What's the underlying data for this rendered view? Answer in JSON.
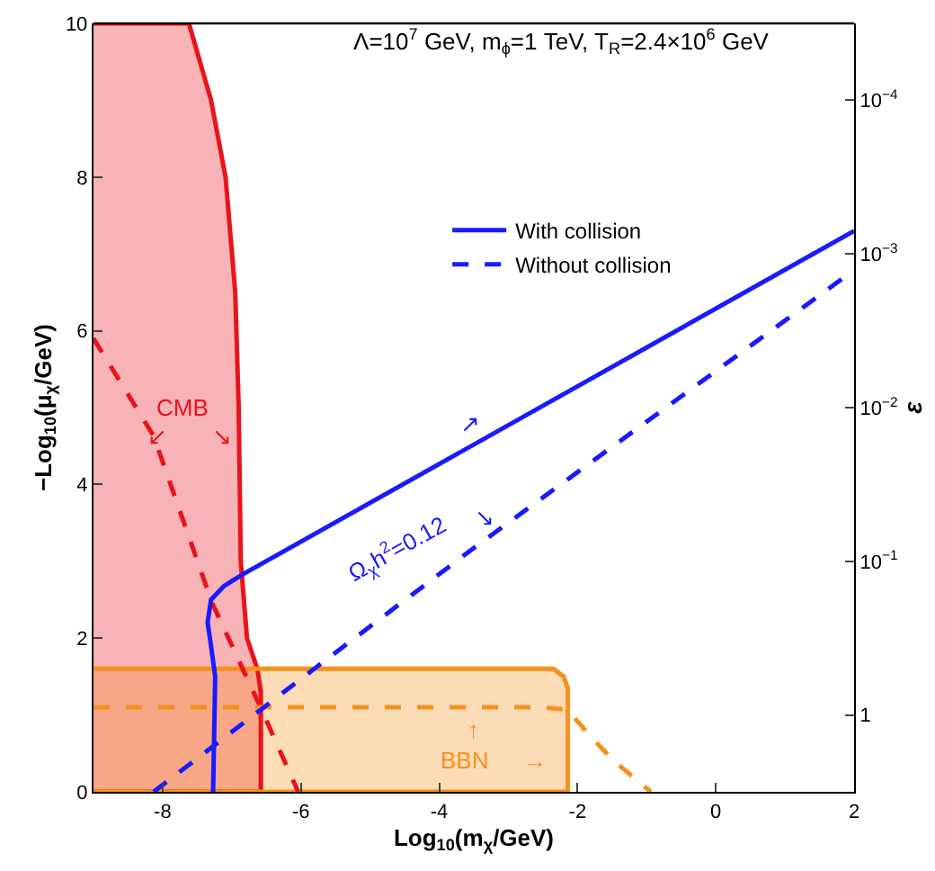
{
  "chart_data": {
    "type": "line",
    "title": "Λ=10$^{7}$ GeV, m$_{ϕ}$=1 TeV, T$_{R}$=2.4×10$^{6}$ GeV",
    "xlabel": "Log$_{10}$(m$_{χ}$/GeV)",
    "ylabel": "−Log$_{10}$(μ$_{χ}$/GeV)",
    "y2label": "ε",
    "xlim": [
      -9,
      2
    ],
    "xticks": [
      -8,
      -6,
      -4,
      -2,
      0,
      2
    ],
    "ylim": [
      0,
      10
    ],
    "yticks": [
      0,
      2,
      4,
      6,
      8,
      10
    ],
    "log": "y2",
    "y2lim": [
      3.16,
      3.16e-05
    ],
    "y2ticks": [
      {
        "value": 0.0001,
        "label": "10$^{−4}$"
      },
      {
        "value": 0.001,
        "label": "10$^{−3}$"
      },
      {
        "value": 0.01,
        "label": "10$^{−2}$"
      },
      {
        "value": 0.1,
        "label": "10$^{−1}$"
      },
      1
    ],
    "legend": "top right",
    "marker": "none",
    "series": [
      {
        "type": "area",
        "color": "#e8141c",
        "line_style": "solid",
        "x": [
          -9,
          -7.62,
          -7.3,
          -7.09,
          -6.95,
          -6.9,
          -6.87,
          -6.78,
          -6.63,
          -6.58,
          -6.58,
          -9
        ],
        "values": [
          10,
          10,
          9,
          8,
          6.5,
          5,
          3,
          2,
          1.6,
          1.3,
          0,
          0
        ]
      },
      {
        "type": "area",
        "color": "#f7901e",
        "line_style": "solid",
        "x": [
          -9,
          -2.35,
          -2.2,
          -2.14,
          -2.14,
          -9
        ],
        "values": [
          1.6,
          1.6,
          1.5,
          1.35,
          0,
          0
        ]
      },
      {
        "color": "#e8141c",
        "line_style": "dashed",
        "x": [
          -9,
          -8.13,
          -7.29,
          -6.58,
          -6.04
        ],
        "values": [
          5.9,
          4.63,
          2.47,
          1.09,
          0
        ]
      },
      {
        "color": "#f7901e",
        "line_style": "dashed",
        "x": [
          -9,
          -2.5,
          -2.15,
          -1.76,
          -1.47,
          -0.94
        ],
        "values": [
          1.1,
          1.1,
          1.07,
          0.67,
          0.4,
          0
        ]
      },
      {
        "name": "With collision",
        "color": "#1a1aff",
        "line_style": "solid",
        "x": [
          -7.27,
          -7.25,
          -7.24,
          -7.3,
          -7.35,
          -7.3,
          -7.11,
          -6.86,
          2
        ],
        "values": [
          0,
          1.0,
          1.5,
          1.9,
          2.2,
          2.5,
          2.68,
          2.82,
          7.3
        ]
      },
      {
        "name": "Without collision",
        "color": "#1a1aff",
        "line_style": "dashed",
        "x": [
          -8.13,
          -5.81,
          -3.52,
          2
        ],
        "values": [
          0,
          1.6,
          3.16,
          6.79
        ]
      }
    ],
    "annotations": [
      "CMB",
      "↙",
      "↘",
      "BBN",
      "↑",
      "→",
      "Ω$_{χ}$h$^{2}$=0.12",
      "↗",
      "↘"
    ]
  }
}
